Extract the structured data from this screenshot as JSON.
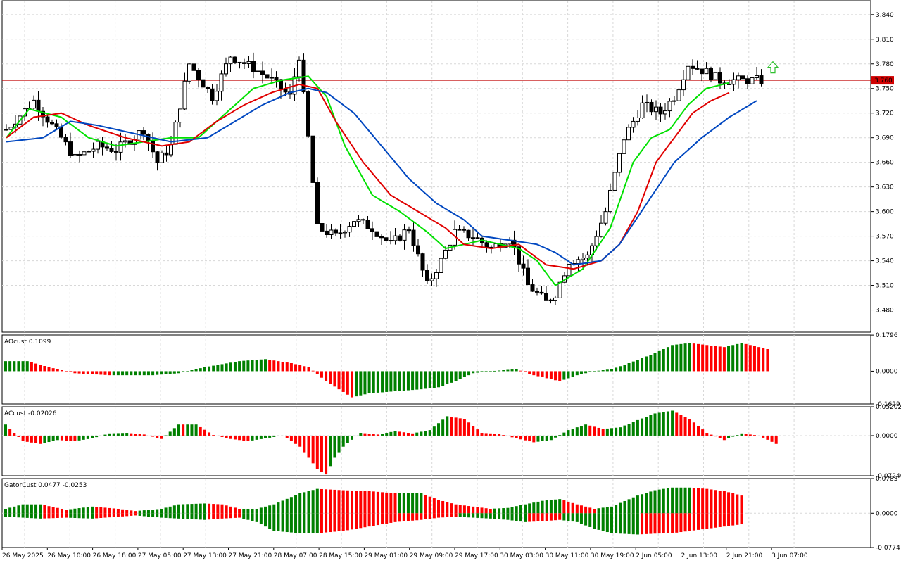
{
  "chart_data": [
    {
      "type": "candlestick",
      "panel": "main",
      "price_ticks": [
        "3.840",
        "3.810",
        "3.780",
        "3.750",
        "3.720",
        "3.690",
        "3.660",
        "3.630",
        "3.600",
        "3.570",
        "3.540",
        "3.510",
        "3.480"
      ],
      "ylim": [
        3.453,
        3.857
      ],
      "current_price": "3.760",
      "current_price_value": 3.76,
      "bar_count": 166,
      "x_tick_labels": [
        "26 May 2025",
        "26 May 10:00",
        "26 May 18:00",
        "27 May 05:00",
        "27 May 13:00",
        "27 May 21:00",
        "28 May 07:00",
        "28 May 15:00",
        "29 May 01:00",
        "29 May 09:00",
        "29 May 17:00",
        "30 May 03:00",
        "30 May 11:00",
        "30 May 19:00",
        "2 Jun 05:00",
        "2 Jun 13:00",
        "2 Jun 21:00",
        "3 Jun 07:00"
      ],
      "close_anchors": [
        [
          0,
          3.7
        ],
        [
          6,
          3.735
        ],
        [
          12,
          3.69
        ],
        [
          15,
          3.665
        ],
        [
          20,
          3.68
        ],
        [
          24,
          3.675
        ],
        [
          30,
          3.7
        ],
        [
          33,
          3.66
        ],
        [
          36,
          3.68
        ],
        [
          40,
          3.78
        ],
        [
          45,
          3.74
        ],
        [
          49,
          3.79
        ],
        [
          54,
          3.775
        ],
        [
          58,
          3.76
        ],
        [
          62,
          3.74
        ],
        [
          64,
          3.79
        ],
        [
          66,
          3.69
        ],
        [
          68,
          3.58
        ],
        [
          72,
          3.57
        ],
        [
          76,
          3.59
        ],
        [
          80,
          3.58
        ],
        [
          84,
          3.56
        ],
        [
          88,
          3.58
        ],
        [
          92,
          3.51
        ],
        [
          95,
          3.54
        ],
        [
          98,
          3.575
        ],
        [
          102,
          3.57
        ],
        [
          106,
          3.555
        ],
        [
          110,
          3.57
        ],
        [
          114,
          3.51
        ],
        [
          118,
          3.49
        ],
        [
          120,
          3.5
        ],
        [
          123,
          3.54
        ],
        [
          127,
          3.545
        ],
        [
          131,
          3.6
        ],
        [
          135,
          3.69
        ],
        [
          139,
          3.73
        ],
        [
          143,
          3.72
        ],
        [
          146,
          3.74
        ],
        [
          149,
          3.78
        ],
        [
          153,
          3.77
        ],
        [
          156,
          3.76
        ],
        [
          158,
          3.76
        ]
      ],
      "indicator_lines": {
        "green_line": [
          [
            0,
            3.69
          ],
          [
            5,
            3.725
          ],
          [
            12,
            3.715
          ],
          [
            18,
            3.69
          ],
          [
            24,
            3.68
          ],
          [
            30,
            3.685
          ],
          [
            36,
            3.69
          ],
          [
            42,
            3.69
          ],
          [
            48,
            3.72
          ],
          [
            54,
            3.75
          ],
          [
            60,
            3.76
          ],
          [
            66,
            3.765
          ],
          [
            70,
            3.74
          ],
          [
            74,
            3.68
          ],
          [
            80,
            3.62
          ],
          [
            86,
            3.6
          ],
          [
            92,
            3.575
          ],
          [
            96,
            3.555
          ],
          [
            100,
            3.56
          ],
          [
            104,
            3.565
          ],
          [
            108,
            3.56
          ],
          [
            112,
            3.555
          ],
          [
            116,
            3.54
          ],
          [
            120,
            3.51
          ],
          [
            126,
            3.53
          ],
          [
            132,
            3.58
          ],
          [
            137,
            3.66
          ],
          [
            141,
            3.69
          ],
          [
            145,
            3.7
          ],
          [
            149,
            3.73
          ],
          [
            153,
            3.75
          ],
          [
            158,
            3.757
          ]
        ],
        "red_line": [
          [
            0,
            3.69
          ],
          [
            6,
            3.715
          ],
          [
            12,
            3.72
          ],
          [
            18,
            3.705
          ],
          [
            26,
            3.69
          ],
          [
            34,
            3.68
          ],
          [
            40,
            3.685
          ],
          [
            46,
            3.71
          ],
          [
            52,
            3.73
          ],
          [
            58,
            3.745
          ],
          [
            64,
            3.755
          ],
          [
            68,
            3.75
          ],
          [
            72,
            3.71
          ],
          [
            78,
            3.66
          ],
          [
            84,
            3.62
          ],
          [
            90,
            3.6
          ],
          [
            96,
            3.58
          ],
          [
            100,
            3.56
          ],
          [
            106,
            3.555
          ],
          [
            112,
            3.56
          ],
          [
            118,
            3.535
          ],
          [
            124,
            3.53
          ],
          [
            130,
            3.54
          ],
          [
            134,
            3.56
          ],
          [
            138,
            3.6
          ],
          [
            142,
            3.66
          ],
          [
            146,
            3.69
          ],
          [
            150,
            3.72
          ],
          [
            154,
            3.735
          ],
          [
            158,
            3.745
          ]
        ],
        "blue_line": [
          [
            0,
            3.685
          ],
          [
            8,
            3.69
          ],
          [
            14,
            3.71
          ],
          [
            20,
            3.705
          ],
          [
            28,
            3.695
          ],
          [
            36,
            3.685
          ],
          [
            44,
            3.69
          ],
          [
            50,
            3.71
          ],
          [
            56,
            3.73
          ],
          [
            62,
            3.745
          ],
          [
            66,
            3.75
          ],
          [
            70,
            3.745
          ],
          [
            76,
            3.72
          ],
          [
            82,
            3.68
          ],
          [
            88,
            3.64
          ],
          [
            94,
            3.61
          ],
          [
            100,
            3.59
          ],
          [
            104,
            3.57
          ],
          [
            110,
            3.565
          ],
          [
            116,
            3.56
          ],
          [
            120,
            3.55
          ],
          [
            124,
            3.535
          ],
          [
            130,
            3.54
          ],
          [
            134,
            3.56
          ],
          [
            140,
            3.61
          ],
          [
            146,
            3.66
          ],
          [
            152,
            3.69
          ],
          [
            158,
            3.715
          ],
          [
            164,
            3.735
          ]
        ]
      },
      "signal_arrow": "up-arrow-icon"
    },
    {
      "type": "histogram",
      "panel": "AOcust",
      "label": "AOcust 0.1099",
      "y_ticks": [
        "0.1796",
        "0.0000",
        "-0.1629"
      ],
      "ylim": [
        -0.163,
        0.18
      ],
      "profile": [
        [
          0,
          0.05
        ],
        [
          5,
          0.05
        ],
        [
          10,
          0.02
        ],
        [
          16,
          -0.01
        ],
        [
          24,
          -0.02
        ],
        [
          34,
          -0.02
        ],
        [
          40,
          -0.01
        ],
        [
          46,
          0.02
        ],
        [
          54,
          0.05
        ],
        [
          60,
          0.06
        ],
        [
          66,
          0.04
        ],
        [
          70,
          0.02
        ],
        [
          74,
          -0.05
        ],
        [
          80,
          -0.13
        ],
        [
          84,
          -0.11
        ],
        [
          90,
          -0.1
        ],
        [
          96,
          -0.09
        ],
        [
          100,
          -0.08
        ],
        [
          104,
          -0.05
        ],
        [
          108,
          -0.01
        ],
        [
          112,
          0.0
        ],
        [
          118,
          0.01
        ],
        [
          122,
          -0.02
        ],
        [
          128,
          -0.05
        ],
        [
          132,
          -0.02
        ],
        [
          136,
          0.0
        ],
        [
          140,
          0.01
        ],
        [
          144,
          0.04
        ],
        [
          150,
          0.09
        ],
        [
          154,
          0.13
        ],
        [
          158,
          0.14
        ],
        [
          162,
          0.13
        ],
        [
          166,
          0.12
        ],
        [
          170,
          0.14
        ],
        [
          176,
          0.11
        ]
      ]
    },
    {
      "type": "histogram",
      "panel": "ACcust",
      "label": "ACcust -0.02026",
      "y_ticks": [
        "0.05202",
        "0.0000",
        "-0.07240"
      ],
      "ylim": [
        -0.0724,
        0.052
      ],
      "profile": [
        [
          0,
          0.02
        ],
        [
          4,
          -0.01
        ],
        [
          8,
          -0.015
        ],
        [
          12,
          -0.008
        ],
        [
          16,
          -0.01
        ],
        [
          20,
          -0.005
        ],
        [
          24,
          0.004
        ],
        [
          28,
          0.005
        ],
        [
          32,
          0.002
        ],
        [
          36,
          -0.006
        ],
        [
          40,
          0.02
        ],
        [
          44,
          0.02
        ],
        [
          48,
          0.001
        ],
        [
          52,
          -0.006
        ],
        [
          56,
          -0.01
        ],
        [
          60,
          -0.005
        ],
        [
          64,
          0.0
        ],
        [
          68,
          -0.02
        ],
        [
          72,
          -0.06
        ],
        [
          74,
          -0.07
        ],
        [
          76,
          -0.04
        ],
        [
          78,
          -0.02
        ],
        [
          82,
          0.005
        ],
        [
          86,
          0.002
        ],
        [
          90,
          0.008
        ],
        [
          94,
          0.004
        ],
        [
          98,
          0.01
        ],
        [
          102,
          0.035
        ],
        [
          106,
          0.03
        ],
        [
          110,
          0.005
        ],
        [
          114,
          0.003
        ],
        [
          118,
          -0.005
        ],
        [
          122,
          -0.012
        ],
        [
          126,
          -0.008
        ],
        [
          130,
          0.01
        ],
        [
          134,
          0.02
        ],
        [
          138,
          0.012
        ],
        [
          142,
          0.015
        ],
        [
          146,
          0.028
        ],
        [
          150,
          0.04
        ],
        [
          154,
          0.045
        ],
        [
          158,
          0.03
        ],
        [
          162,
          0.005
        ],
        [
          166,
          -0.008
        ],
        [
          170,
          0.004
        ],
        [
          174,
          0.0
        ],
        [
          178,
          -0.015
        ]
      ]
    },
    {
      "type": "histogram",
      "panel": "GatorCust",
      "label": "GatorCust 0.0477 -0.0253",
      "y_ticks": [
        "0.0783",
        "0.0000",
        "-0.0774"
      ],
      "ylim": [
        -0.0774,
        0.0783
      ],
      "upper_profile": [
        [
          0,
          0.01
        ],
        [
          4,
          0.02
        ],
        [
          8,
          0.02
        ],
        [
          14,
          0.008
        ],
        [
          20,
          0.015
        ],
        [
          26,
          0.01
        ],
        [
          30,
          0.005
        ],
        [
          36,
          0.01
        ],
        [
          40,
          0.02
        ],
        [
          46,
          0.022
        ],
        [
          50,
          0.02
        ],
        [
          54,
          0.01
        ],
        [
          58,
          0.01
        ],
        [
          62,
          0.02
        ],
        [
          68,
          0.045
        ],
        [
          72,
          0.055
        ],
        [
          78,
          0.052
        ],
        [
          84,
          0.05
        ],
        [
          90,
          0.045
        ],
        [
          96,
          0.045
        ],
        [
          100,
          0.03
        ],
        [
          104,
          0.02
        ],
        [
          108,
          0.015
        ],
        [
          112,
          0.01
        ],
        [
          116,
          0.012
        ],
        [
          120,
          0.02
        ],
        [
          124,
          0.028
        ],
        [
          128,
          0.032
        ],
        [
          132,
          0.02
        ],
        [
          136,
          0.01
        ],
        [
          140,
          0.015
        ],
        [
          146,
          0.04
        ],
        [
          150,
          0.052
        ],
        [
          154,
          0.058
        ],
        [
          158,
          0.058
        ],
        [
          162,
          0.055
        ],
        [
          166,
          0.05
        ],
        [
          170,
          0.04
        ]
      ],
      "lower_profile": [
        [
          0,
          -0.008
        ],
        [
          4,
          -0.01
        ],
        [
          8,
          -0.012
        ],
        [
          14,
          -0.01
        ],
        [
          20,
          -0.012
        ],
        [
          26,
          -0.008
        ],
        [
          30,
          -0.005
        ],
        [
          36,
          -0.01
        ],
        [
          40,
          -0.012
        ],
        [
          46,
          -0.015
        ],
        [
          50,
          -0.012
        ],
        [
          54,
          -0.01
        ],
        [
          58,
          -0.02
        ],
        [
          62,
          -0.04
        ],
        [
          68,
          -0.045
        ],
        [
          72,
          -0.045
        ],
        [
          78,
          -0.04
        ],
        [
          84,
          -0.03
        ],
        [
          90,
          -0.02
        ],
        [
          96,
          -0.015
        ],
        [
          100,
          -0.01
        ],
        [
          104,
          -0.008
        ],
        [
          108,
          -0.01
        ],
        [
          112,
          -0.012
        ],
        [
          116,
          -0.015
        ],
        [
          120,
          -0.02
        ],
        [
          124,
          -0.018
        ],
        [
          128,
          -0.015
        ],
        [
          132,
          -0.02
        ],
        [
          136,
          -0.035
        ],
        [
          140,
          -0.045
        ],
        [
          146,
          -0.048
        ],
        [
          150,
          -0.046
        ],
        [
          154,
          -0.045
        ],
        [
          158,
          -0.04
        ],
        [
          162,
          -0.035
        ],
        [
          166,
          -0.03
        ],
        [
          170,
          -0.025
        ]
      ]
    }
  ]
}
